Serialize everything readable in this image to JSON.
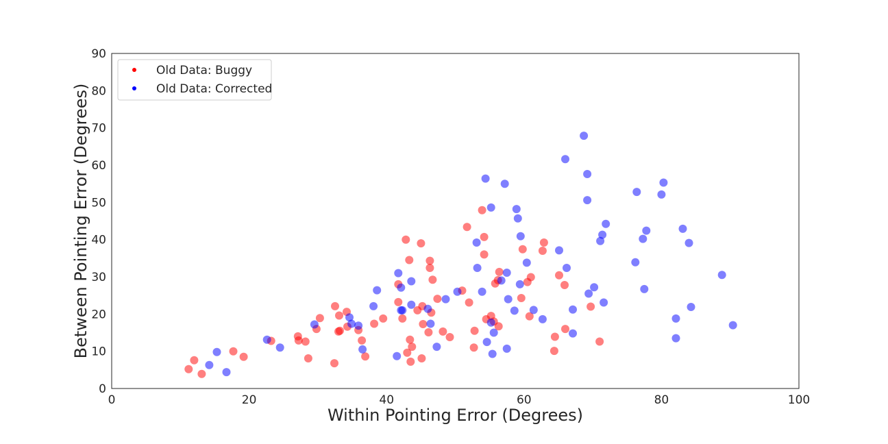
{
  "chart_data": {
    "type": "scatter",
    "xlabel": "Within Pointing Error (Degrees)",
    "ylabel": "Between Pointing Error (Degrees)",
    "xlim": [
      0,
      100
    ],
    "ylim": [
      0,
      90
    ],
    "xticks": [
      "0",
      "20",
      "40",
      "60",
      "80",
      "100"
    ],
    "yticks": [
      "0",
      "10",
      "20",
      "30",
      "40",
      "50",
      "60",
      "70",
      "80",
      "90"
    ],
    "grid": false,
    "legend_position": "top-left",
    "series": [
      {
        "name": "Old Data: Buggy",
        "color": "#ff0000",
        "points": [
          [
            11.2,
            5.2
          ],
          [
            12.0,
            7.6
          ],
          [
            13.1,
            3.9
          ],
          [
            17.7,
            10.0
          ],
          [
            19.2,
            8.5
          ],
          [
            23.2,
            12.8
          ],
          [
            27.1,
            14.0
          ],
          [
            27.2,
            12.9
          ],
          [
            28.2,
            12.6
          ],
          [
            28.6,
            8.1
          ],
          [
            29.8,
            16.0
          ],
          [
            30.3,
            18.9
          ],
          [
            32.5,
            22.1
          ],
          [
            32.4,
            6.8
          ],
          [
            33.1,
            19.6
          ],
          [
            33.0,
            15.3
          ],
          [
            33.2,
            15.5
          ],
          [
            34.2,
            20.6
          ],
          [
            34.3,
            16.6
          ],
          [
            35.9,
            15.7
          ],
          [
            36.4,
            12.9
          ],
          [
            36.9,
            8.6
          ],
          [
            38.2,
            17.4
          ],
          [
            39.5,
            18.8
          ],
          [
            41.7,
            23.2
          ],
          [
            41.7,
            28.0
          ],
          [
            42.3,
            18.8
          ],
          [
            42.8,
            40.0
          ],
          [
            43.0,
            9.6
          ],
          [
            43.3,
            34.5
          ],
          [
            43.4,
            13.1
          ],
          [
            43.5,
            7.2
          ],
          [
            43.7,
            11.2
          ],
          [
            44.5,
            21.0
          ],
          [
            45.0,
            39.0
          ],
          [
            45.2,
            22.1
          ],
          [
            45.3,
            17.3
          ],
          [
            45.1,
            8.1
          ],
          [
            46.1,
            15.1
          ],
          [
            46.3,
            34.3
          ],
          [
            46.3,
            32.4
          ],
          [
            46.5,
            20.4
          ],
          [
            46.7,
            29.2
          ],
          [
            47.4,
            24.1
          ],
          [
            48.2,
            15.3
          ],
          [
            49.2,
            13.8
          ],
          [
            51.0,
            26.3
          ],
          [
            51.7,
            43.4
          ],
          [
            52.0,
            23.1
          ],
          [
            52.7,
            11.0
          ],
          [
            52.8,
            15.5
          ],
          [
            53.9,
            47.9
          ],
          [
            54.2,
            40.7
          ],
          [
            54.2,
            36.0
          ],
          [
            54.5,
            18.6
          ],
          [
            55.2,
            19.5
          ],
          [
            55.6,
            18.0
          ],
          [
            55.8,
            28.2
          ],
          [
            56.2,
            29.1
          ],
          [
            56.3,
            16.7
          ],
          [
            56.4,
            31.3
          ],
          [
            59.6,
            24.3
          ],
          [
            59.8,
            37.4
          ],
          [
            60.5,
            28.6
          ],
          [
            60.8,
            19.4
          ],
          [
            61.0,
            29.9
          ],
          [
            62.7,
            37.0
          ],
          [
            62.9,
            39.2
          ],
          [
            64.4,
            10.1
          ],
          [
            64.5,
            13.9
          ],
          [
            65.1,
            30.4
          ],
          [
            65.9,
            27.8
          ],
          [
            66.0,
            16.0
          ],
          [
            69.7,
            22.0
          ],
          [
            71.0,
            12.6
          ]
        ]
      },
      {
        "name": "Old Data: Corrected",
        "color": "#0000ff",
        "points": [
          [
            14.2,
            6.3
          ],
          [
            15.3,
            9.8
          ],
          [
            16.7,
            4.4
          ],
          [
            22.6,
            13.1
          ],
          [
            24.5,
            11.0
          ],
          [
            29.5,
            17.2
          ],
          [
            34.6,
            19.1
          ],
          [
            34.9,
            17.4
          ],
          [
            35.9,
            16.9
          ],
          [
            36.5,
            10.5
          ],
          [
            38.1,
            22.1
          ],
          [
            38.6,
            26.4
          ],
          [
            41.5,
            8.7
          ],
          [
            41.7,
            31.0
          ],
          [
            42.1,
            21.0
          ],
          [
            42.1,
            27.1
          ],
          [
            42.3,
            21.0
          ],
          [
            43.6,
            22.5
          ],
          [
            43.6,
            28.8
          ],
          [
            46.0,
            21.4
          ],
          [
            46.4,
            17.4
          ],
          [
            47.3,
            11.2
          ],
          [
            48.6,
            24.0
          ],
          [
            50.3,
            26.0
          ],
          [
            53.1,
            39.2
          ],
          [
            53.2,
            32.4
          ],
          [
            53.9,
            26.0
          ],
          [
            54.4,
            56.4
          ],
          [
            54.6,
            12.5
          ],
          [
            55.2,
            48.6
          ],
          [
            55.2,
            17.7
          ],
          [
            55.4,
            9.3
          ],
          [
            55.6,
            15.0
          ],
          [
            56.7,
            29.0
          ],
          [
            57.2,
            55.0
          ],
          [
            57.5,
            31.1
          ],
          [
            57.5,
            10.7
          ],
          [
            57.7,
            24.0
          ],
          [
            58.6,
            20.9
          ],
          [
            58.9,
            48.2
          ],
          [
            59.1,
            45.7
          ],
          [
            59.4,
            28.0
          ],
          [
            59.5,
            40.9
          ],
          [
            60.4,
            33.8
          ],
          [
            61.4,
            21.1
          ],
          [
            62.7,
            18.6
          ],
          [
            65.1,
            37.1
          ],
          [
            66.0,
            61.6
          ],
          [
            66.2,
            32.4
          ],
          [
            67.1,
            21.2
          ],
          [
            67.1,
            14.8
          ],
          [
            68.7,
            67.9
          ],
          [
            69.2,
            57.6
          ],
          [
            69.2,
            50.6
          ],
          [
            69.4,
            25.5
          ],
          [
            70.2,
            27.2
          ],
          [
            71.1,
            39.6
          ],
          [
            71.4,
            41.3
          ],
          [
            71.6,
            23.1
          ],
          [
            71.9,
            44.2
          ],
          [
            76.2,
            33.9
          ],
          [
            76.4,
            52.8
          ],
          [
            77.3,
            40.2
          ],
          [
            77.5,
            26.7
          ],
          [
            77.8,
            42.4
          ],
          [
            80.0,
            52.1
          ],
          [
            80.3,
            55.3
          ],
          [
            82.1,
            18.8
          ],
          [
            82.1,
            13.5
          ],
          [
            83.1,
            42.9
          ],
          [
            84.0,
            39.1
          ],
          [
            84.3,
            21.9
          ],
          [
            88.8,
            30.5
          ],
          [
            90.4,
            17.0
          ]
        ]
      }
    ]
  }
}
